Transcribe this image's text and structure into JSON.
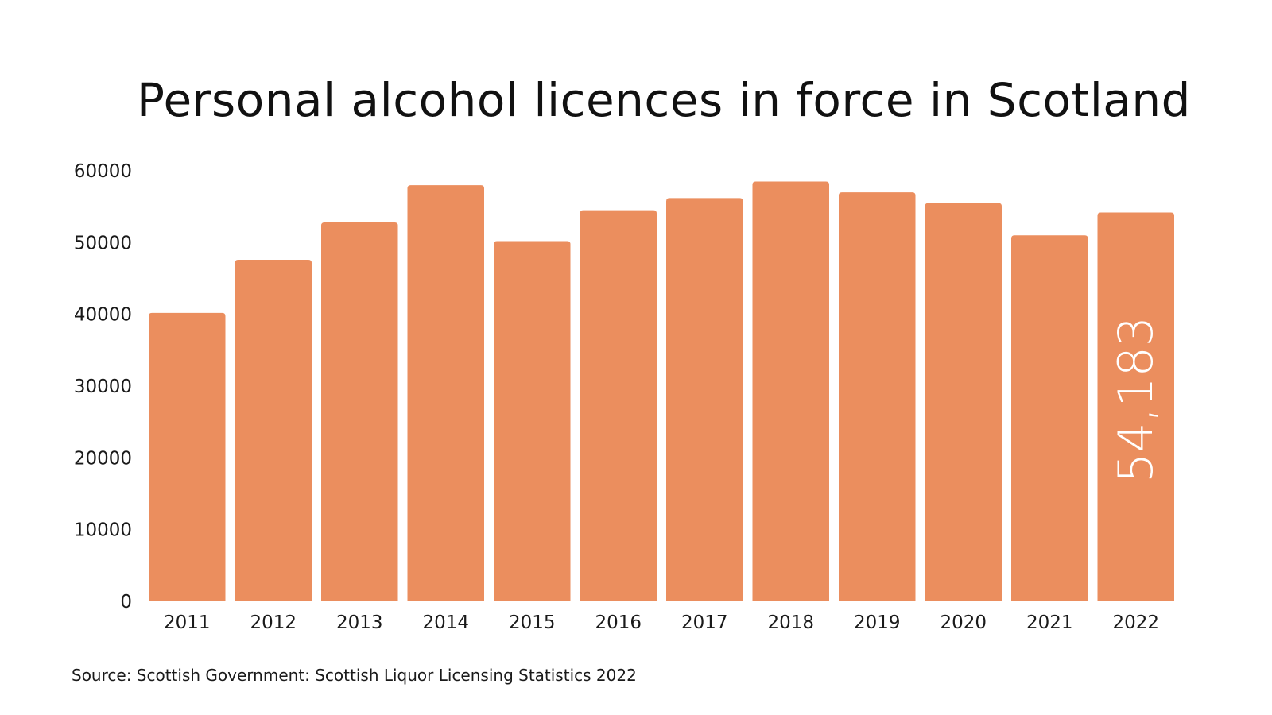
{
  "chart_data": {
    "type": "bar",
    "title": "Personal alcohol licences in force in Scotland",
    "xlabel": "",
    "ylabel": "",
    "categories": [
      "2011",
      "2012",
      "2013",
      "2014",
      "2015",
      "2016",
      "2017",
      "2018",
      "2019",
      "2020",
      "2021",
      "2022"
    ],
    "values": [
      40200,
      47600,
      52800,
      58000,
      50200,
      54500,
      56200,
      58500,
      57000,
      55500,
      51000,
      54183
    ],
    "ylim": [
      0,
      60000
    ],
    "yticks": [
      "0",
      "10000",
      "20000",
      "30000",
      "40000",
      "50000",
      "60000"
    ],
    "bar_color": "#EB8E5E",
    "grid": false,
    "annotation": {
      "category": "2022",
      "text": "54,183",
      "color": "#ffffff"
    }
  },
  "source": "Source: Scottish Government: Scottish Liquor Licensing Statistics 2022"
}
